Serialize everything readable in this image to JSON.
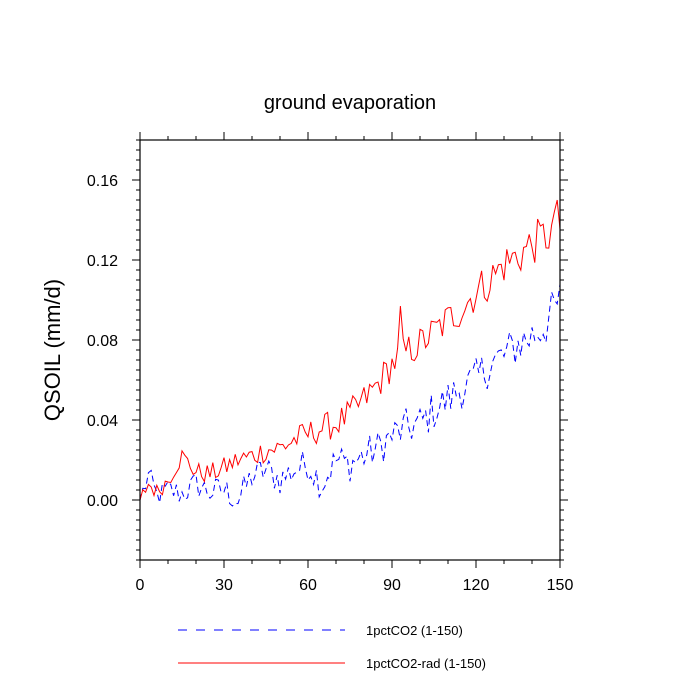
{
  "chart_data": {
    "type": "line",
    "title": "ground evaporation",
    "xlabel": "",
    "ylabel": "QSOIL  (mm/d)",
    "xlim": [
      0,
      150
    ],
    "ylim": [
      -0.03,
      0.18
    ],
    "xticks": [
      0,
      30,
      60,
      90,
      120,
      150
    ],
    "xtick_labels": [
      "0",
      "30",
      "60",
      "90",
      "120",
      "150"
    ],
    "yticks": [
      0.0,
      0.04,
      0.08,
      0.12,
      0.16
    ],
    "ytick_labels": [
      "0.00",
      "0.04",
      "0.08",
      "0.12",
      "0.16"
    ],
    "grid": false,
    "legend_position": "bottom",
    "series": [
      {
        "name": "1pctCO2 (1-150)",
        "color": "#0000ff",
        "style": "dashed",
        "anchors": [
          [
            0,
            0.0
          ],
          [
            3,
            0.012
          ],
          [
            6,
            0.002
          ],
          [
            10,
            0.005
          ],
          [
            15,
            0.003
          ],
          [
            20,
            0.008
          ],
          [
            25,
            0.004
          ],
          [
            30,
            0.005
          ],
          [
            35,
            0.0
          ],
          [
            40,
            0.012
          ],
          [
            45,
            0.015
          ],
          [
            50,
            0.01
          ],
          [
            55,
            0.015
          ],
          [
            60,
            0.018
          ],
          [
            65,
            0.008
          ],
          [
            70,
            0.02
          ],
          [
            75,
            0.018
          ],
          [
            80,
            0.022
          ],
          [
            85,
            0.026
          ],
          [
            90,
            0.032
          ],
          [
            95,
            0.036
          ],
          [
            100,
            0.038
          ],
          [
            105,
            0.045
          ],
          [
            110,
            0.05
          ],
          [
            115,
            0.056
          ],
          [
            120,
            0.06
          ],
          [
            125,
            0.068
          ],
          [
            130,
            0.072
          ],
          [
            135,
            0.078
          ],
          [
            140,
            0.082
          ],
          [
            145,
            0.088
          ],
          [
            150,
            0.1
          ]
        ]
      },
      {
        "name": "1pctCO2-rad (1-150)",
        "color": "#ff0000",
        "style": "solid",
        "anchors": [
          [
            0,
            0.0
          ],
          [
            3,
            0.008
          ],
          [
            6,
            0.004
          ],
          [
            10,
            0.01
          ],
          [
            15,
            0.022
          ],
          [
            20,
            0.014
          ],
          [
            25,
            0.013
          ],
          [
            30,
            0.016
          ],
          [
            35,
            0.02
          ],
          [
            40,
            0.022
          ],
          [
            45,
            0.025
          ],
          [
            50,
            0.026
          ],
          [
            55,
            0.03
          ],
          [
            60,
            0.033
          ],
          [
            65,
            0.036
          ],
          [
            70,
            0.038
          ],
          [
            75,
            0.043
          ],
          [
            80,
            0.05
          ],
          [
            85,
            0.058
          ],
          [
            90,
            0.068
          ],
          [
            95,
            0.074
          ],
          [
            100,
            0.078
          ],
          [
            105,
            0.084
          ],
          [
            110,
            0.09
          ],
          [
            115,
            0.096
          ],
          [
            120,
            0.104
          ],
          [
            125,
            0.11
          ],
          [
            130,
            0.118
          ],
          [
            135,
            0.122
          ],
          [
            140,
            0.128
          ],
          [
            145,
            0.132
          ],
          [
            150,
            0.136
          ]
        ],
        "peaks": [
          [
            93,
            0.097
          ],
          [
            149,
            0.15
          ]
        ]
      }
    ]
  }
}
